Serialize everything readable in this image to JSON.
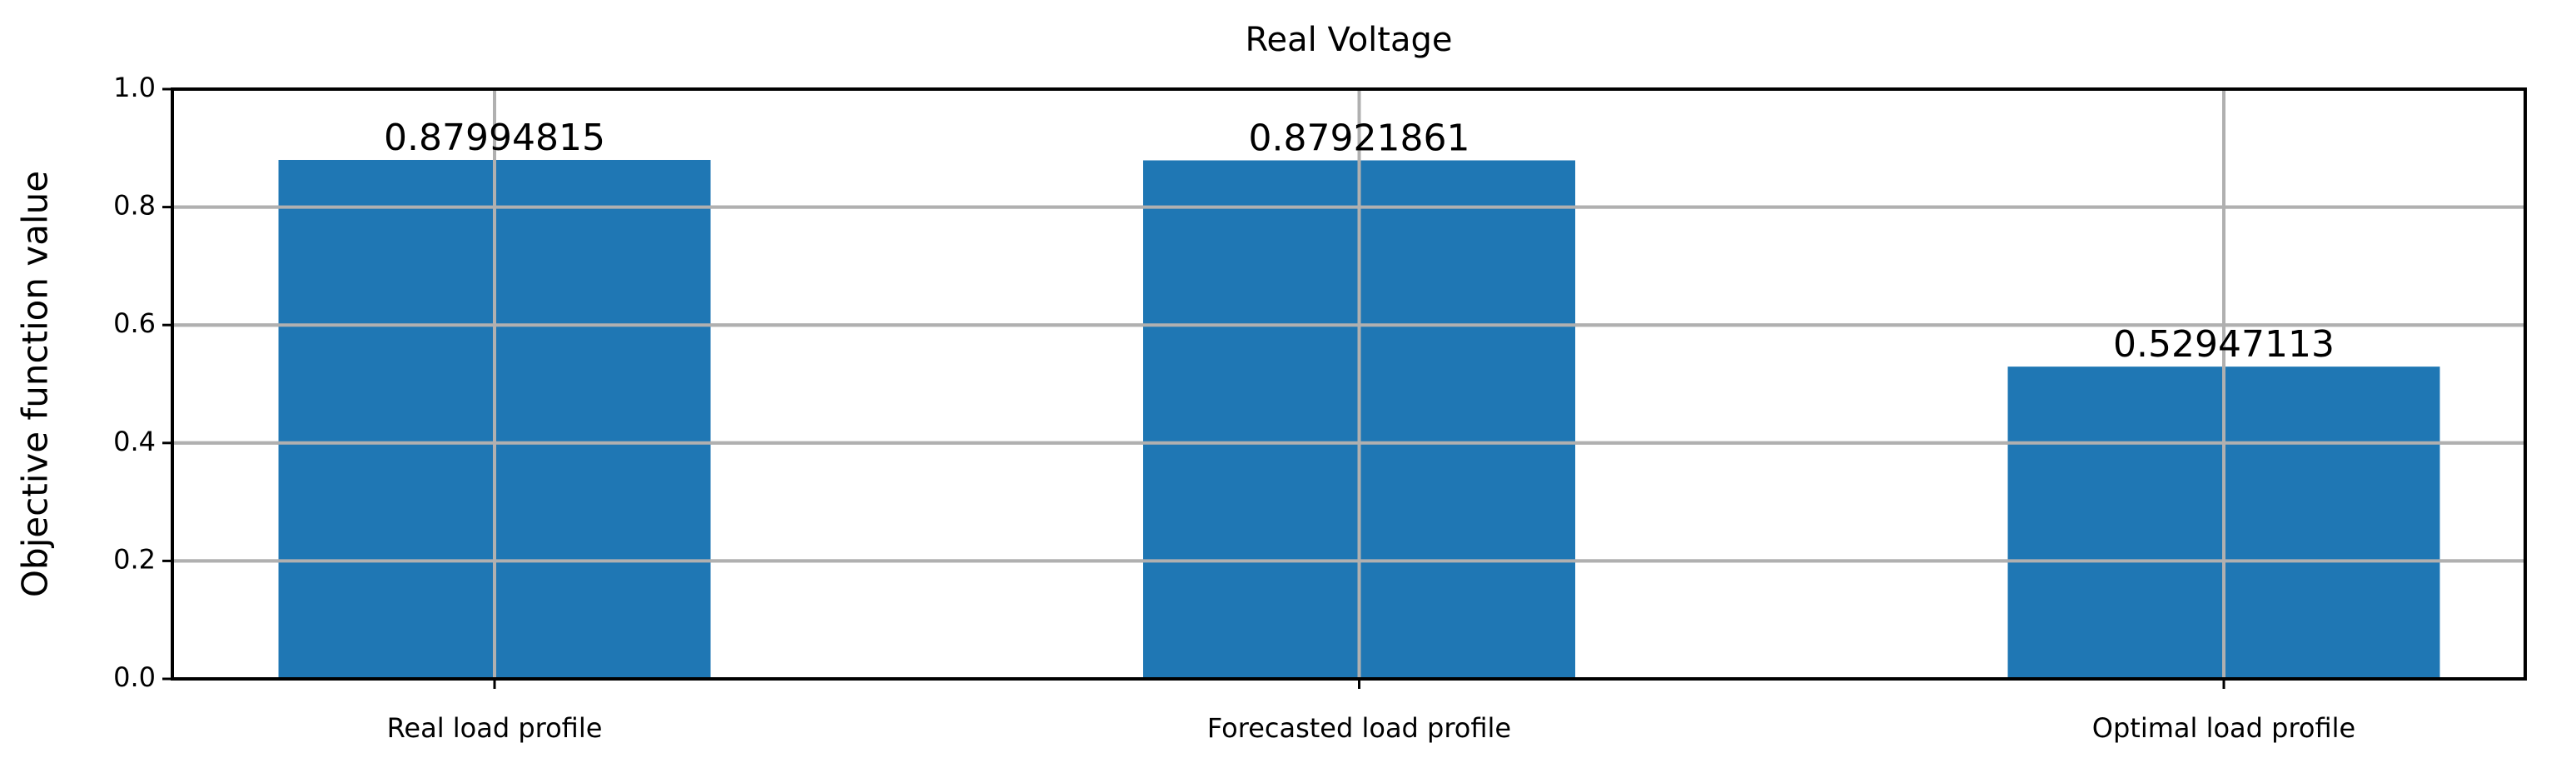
{
  "chart_data": {
    "type": "bar",
    "title": "Real Voltage",
    "y_label": "Objective function value",
    "categories": [
      "Real load profile",
      "Forecasted load profile",
      "Optimal load profile"
    ],
    "values": [
      0.87994815,
      0.87921861,
      0.52947113
    ],
    "color": "#1f77b4",
    "ylim": [
      0,
      1
    ],
    "yticks": [
      {
        "value": 0,
        "label": "0.0"
      },
      0.2,
      0.4,
      0.6,
      0.8,
      {
        "value": 1,
        "label": "1.0"
      }
    ],
    "grid": true
  }
}
